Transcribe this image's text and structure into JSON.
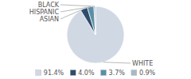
{
  "chart_data": {
    "type": "pie",
    "categories": [
      "WHITE",
      "ASIAN",
      "HISPANIC",
      "BLACK"
    ],
    "values": [
      91.4,
      4.0,
      3.7,
      0.9
    ],
    "value_labels": [
      "91.4%",
      "4.0%",
      "3.7%",
      "0.9%"
    ],
    "colors": [
      "#d0d8e4",
      "#2e4d6b",
      "#5b8fa8",
      "#a8b8c8"
    ],
    "legend": "bottom"
  }
}
